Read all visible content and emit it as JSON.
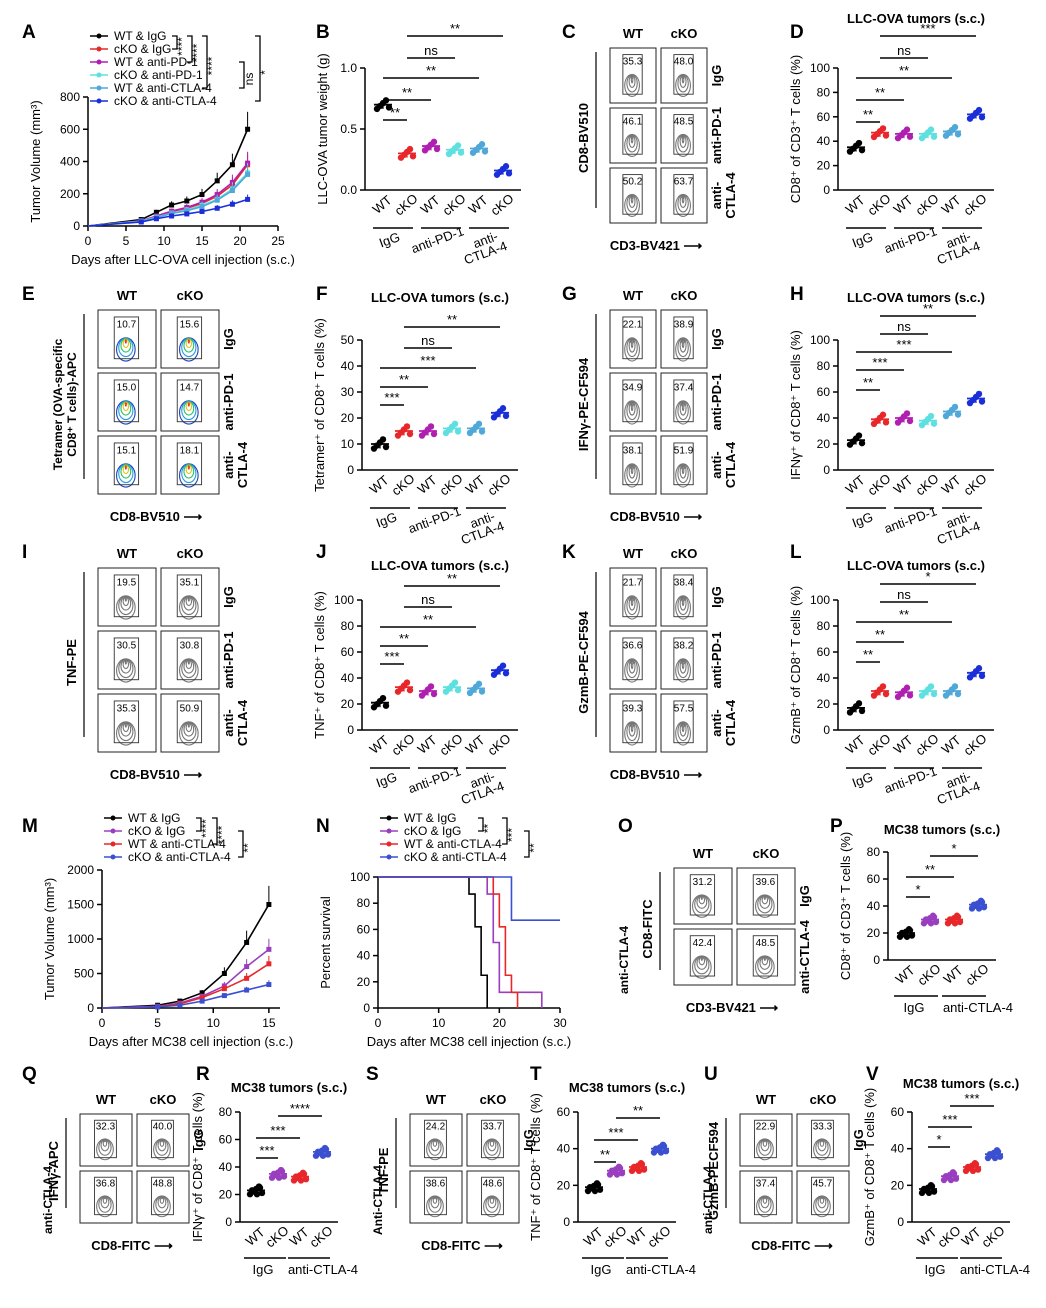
{
  "panel_letters": [
    "A",
    "B",
    "C",
    "D",
    "E",
    "F",
    "G",
    "H",
    "I",
    "J",
    "K",
    "L",
    "M",
    "N",
    "O",
    "P",
    "Q",
    "R",
    "S",
    "T",
    "U",
    "V"
  ],
  "colors": {
    "wt_igg": "#000000",
    "cko_igg": "#e8272a",
    "wt_pd1": "#b020b0",
    "cko_pd1": "#5fe0e0",
    "wt_ctla4": "#4fa8d8",
    "cko_ctla4": "#1a2fd8",
    "mc_cko_igg": "#9a3ec0",
    "mc_wt_ctla4": "#e8272a",
    "mc_cko_ctla4": "#3a50d0"
  },
  "common": {
    "wt": "WT",
    "cko": "cKO",
    "igg": "IgG",
    "anti_pd1": "anti-PD-1",
    "anti_ctla4_l1": "anti-",
    "anti_ctla4_l2": "CTLA-4",
    "anti_ctla4": "anti-CTLA-4",
    "Anti_ctla4": "Anti-CTLA-4",
    "sig2": "**",
    "sig3": "***",
    "sig4": "****",
    "sig1": "*",
    "ns": "ns"
  },
  "panels": {
    "A": {
      "chart_data": {
        "type": "line",
        "ylabel": "Tumor Volume (mm³)",
        "xlabel": "Days after LLC-OVA cell injection (s.c.)",
        "xlim": [
          0,
          25
        ],
        "ylim": [
          0,
          800
        ],
        "xticks": [
          "0",
          "5",
          "10",
          "15",
          "20",
          "25"
        ],
        "yticks": [
          "0",
          "200",
          "400",
          "600",
          "800"
        ],
        "x": [
          7,
          9,
          11,
          13,
          15,
          17,
          19,
          21
        ],
        "series": [
          {
            "name": "WT & IgG",
            "values": [
              40,
              85,
              130,
              155,
              195,
              280,
              380,
              600
            ]
          },
          {
            "name": "cKO & IgG",
            "values": [
              30,
              60,
              90,
              110,
              140,
              185,
              255,
              380
            ]
          },
          {
            "name": "WT & anti-PD-1",
            "values": [
              32,
              62,
              92,
              115,
              148,
              195,
              270,
              390
            ]
          },
          {
            "name": "cKO & anti-PD-1",
            "values": [
              30,
              55,
              80,
              100,
              128,
              165,
              230,
              330
            ]
          },
          {
            "name": "WT & anti-CTLA-4",
            "values": [
              28,
              52,
              78,
              95,
              120,
              160,
              220,
              320
            ]
          },
          {
            "name": "cKO & anti-CTLA-4",
            "values": [
              25,
              45,
              62,
              75,
              90,
              110,
              135,
              165
            ]
          }
        ],
        "stats": [
          "****",
          "****",
          "****",
          "ns",
          "*"
        ]
      }
    },
    "B": {
      "chart_data": {
        "type": "scatter",
        "ylabel": "LLC-OVA tumor weight (g)",
        "ylim": [
          0,
          1.0
        ],
        "yticks": [
          "0.0",
          "0.5",
          "1.0"
        ],
        "categories": [
          "WT",
          "cKO",
          "WT",
          "cKO",
          "WT",
          "cKO"
        ],
        "groups": [
          "IgG",
          "anti-PD-1",
          "anti-CTLA-4"
        ],
        "means": [
          0.7,
          0.3,
          0.36,
          0.33,
          0.34,
          0.16
        ],
        "stats": [
          "**",
          "**",
          "**",
          "ns",
          "**"
        ]
      }
    },
    "C": {
      "xlabel": "CD3-BV421",
      "ylabel": "CD8-BV510",
      "values": [
        "35.3",
        "48.0",
        "46.1",
        "48.5",
        "50.2",
        "63.7"
      ]
    },
    "D": {
      "chart_data": {
        "type": "scatter",
        "title": "LLC-OVA tumors (s.c.)",
        "ylabel": "CD8⁺ of CD3⁺ T cells (%)",
        "ylim": [
          0,
          100
        ],
        "yticks": [
          "0",
          "20",
          "40",
          "60",
          "80",
          "100"
        ],
        "means": [
          35,
          47,
          46,
          46,
          48,
          62
        ],
        "stats": [
          "**",
          "**",
          "**",
          "ns",
          "***"
        ]
      }
    },
    "E": {
      "xlabel": "CD8-BV510",
      "ylabel_l1": "Tetramer (OVA-specific",
      "ylabel_l2": "CD8⁺ T cells)-APC",
      "values": [
        "10.7",
        "15.6",
        "15.0",
        "14.7",
        "15.1",
        "18.1"
      ]
    },
    "F": {
      "chart_data": {
        "type": "scatter",
        "title": "LLC-OVA tumors (s.c.)",
        "ylabel": "Tetramer⁺ of CD8⁺ T cells (%)",
        "ylim": [
          0,
          50
        ],
        "yticks": [
          "0",
          "10",
          "20",
          "30",
          "40",
          "50"
        ],
        "means": [
          10,
          15,
          15,
          16,
          16,
          22
        ],
        "stats": [
          "***",
          "**",
          "***",
          "ns",
          "**"
        ]
      }
    },
    "G": {
      "xlabel": "CD8-BV510",
      "ylabel": "IFNγ-PE-CF594",
      "values": [
        "22.1",
        "38.9",
        "34.9",
        "37.4",
        "38.1",
        "51.9"
      ]
    },
    "H": {
      "chart_data": {
        "type": "scatter",
        "title": "LLC-OVA tumors (s.c.)",
        "ylabel": "IFNγ⁺ of CD8⁺ T cells (%)",
        "ylim": [
          0,
          100
        ],
        "yticks": [
          "0",
          "20",
          "40",
          "60",
          "80",
          "100"
        ],
        "means": [
          23,
          39,
          40,
          38,
          45,
          55
        ],
        "stats": [
          "**",
          "***",
          "***",
          "ns",
          "**"
        ]
      }
    },
    "I": {
      "xlabel": "CD8-BV510",
      "ylabel": "TNF-PE",
      "values": [
        "19.5",
        "35.1",
        "30.5",
        "30.8",
        "35.3",
        "50.9"
      ]
    },
    "J": {
      "chart_data": {
        "type": "scatter",
        "title": "LLC-OVA tumors (s.c.)",
        "ylabel": "TNF⁺ of CD8⁺ T cells (%)",
        "ylim": [
          0,
          100
        ],
        "yticks": [
          "0",
          "20",
          "40",
          "60",
          "80",
          "100"
        ],
        "means": [
          21,
          33,
          30,
          33,
          32,
          46
        ],
        "stats": [
          "***",
          "**",
          "**",
          "ns",
          "**"
        ]
      }
    },
    "K": {
      "xlabel": "CD8-BV510",
      "ylabel": "GzmB-PE-CF594",
      "values": [
        "21.7",
        "38.4",
        "36.6",
        "38.2",
        "39.3",
        "57.5"
      ]
    },
    "L": {
      "chart_data": {
        "type": "scatter",
        "title": "LLC-OVA tumors (s.c.)",
        "ylabel": "GzmB⁺ of CD8⁺ T cells (%)",
        "ylim": [
          0,
          100
        ],
        "yticks": [
          "0",
          "20",
          "40",
          "60",
          "80",
          "100"
        ],
        "means": [
          17,
          30,
          29,
          30,
          30,
          44
        ],
        "stats": [
          "**",
          "**",
          "**",
          "ns",
          "*"
        ]
      }
    },
    "M": {
      "chart_data": {
        "type": "line",
        "ylabel": "Tumor Volume (mm³)",
        "xlabel": "Days after MC38 cell injection (s.c.)",
        "xlim": [
          0,
          16
        ],
        "ylim": [
          0,
          2000
        ],
        "xticks": [
          "0",
          "5",
          "10",
          "15"
        ],
        "yticks": [
          "0",
          "500",
          "1000",
          "1500",
          "2000"
        ],
        "x": [
          5,
          7,
          9,
          11,
          13,
          15
        ],
        "series": [
          {
            "name": "WT & IgG",
            "values": [
              40,
              100,
              220,
              500,
              950,
              1500
            ]
          },
          {
            "name": "cKO & IgG",
            "values": [
              25,
              70,
              170,
              320,
              600,
              850
            ]
          },
          {
            "name": "WT & anti-CTLA-4",
            "values": [
              20,
              60,
              150,
              280,
              430,
              640
            ]
          },
          {
            "name": "cKO & anti-CTLA-4",
            "values": [
              15,
              40,
              100,
              180,
              260,
              340
            ]
          }
        ],
        "stats": [
          "****",
          "****",
          "**"
        ]
      }
    },
    "N": {
      "chart_data": {
        "type": "line",
        "ylabel": "Percent survival",
        "xlabel": "Days after MC38 cell injection (s.c.)",
        "xlim": [
          0,
          30
        ],
        "ylim": [
          0,
          100
        ],
        "xticks": [
          "0",
          "10",
          "20",
          "30"
        ],
        "yticks": [
          "0",
          "20",
          "40",
          "60",
          "80",
          "100"
        ],
        "series": [
          {
            "name": "WT & IgG",
            "steps": [
              [
                0,
                100
              ],
              [
                15,
                100
              ],
              [
                15,
                87
              ],
              [
                16,
                87
              ],
              [
                16,
                62
              ],
              [
                17,
                62
              ],
              [
                17,
                25
              ],
              [
                18,
                25
              ],
              [
                18,
                0
              ]
            ]
          },
          {
            "name": "cKO & IgG",
            "steps": [
              [
                0,
                100
              ],
              [
                18,
                100
              ],
              [
                18,
                87
              ],
              [
                19,
                87
              ],
              [
                19,
                50
              ],
              [
                20,
                50
              ],
              [
                20,
                12
              ],
              [
                27,
                12
              ],
              [
                27,
                0
              ]
            ]
          },
          {
            "name": "WT & anti-CTLA-4",
            "steps": [
              [
                0,
                100
              ],
              [
                19,
                100
              ],
              [
                19,
                87
              ],
              [
                20,
                87
              ],
              [
                20,
                62
              ],
              [
                21,
                62
              ],
              [
                21,
                25
              ],
              [
                22,
                25
              ],
              [
                22,
                12
              ],
              [
                23,
                12
              ],
              [
                23,
                0
              ]
            ]
          },
          {
            "name": "cKO & anti-CTLA-4",
            "steps": [
              [
                0,
                100
              ],
              [
                22,
                100
              ],
              [
                22,
                67
              ],
              [
                30,
                67
              ]
            ]
          }
        ],
        "stats": [
          "**",
          "***",
          "**"
        ]
      }
    },
    "O": {
      "xlabel": "CD3-BV421",
      "ylabel": "CD8-FITC",
      "values": [
        "31.2",
        "39.6",
        "42.4",
        "48.5"
      ]
    },
    "P": {
      "chart_data": {
        "type": "scatter",
        "title": "MC38 tumors (s.c.)",
        "ylabel": "CD8⁺ of CD3⁺ T cells (%)",
        "ylim": [
          0,
          80
        ],
        "yticks": [
          "0",
          "20",
          "40",
          "60",
          "80"
        ],
        "means": [
          20,
          30,
          30,
          41
        ],
        "stats": [
          "*",
          "**",
          "*"
        ]
      }
    },
    "Q": {
      "xlabel": "CD8-FITC",
      "ylabel": "IFNγ-APC",
      "values": [
        "32.3",
        "40.0",
        "36.8",
        "48.8"
      ]
    },
    "R": {
      "chart_data": {
        "type": "scatter",
        "title": "MC38 tumors (s.c.)",
        "ylabel": "IFNγ⁺ of CD8⁺ T cells (%)",
        "ylim": [
          0,
          80
        ],
        "yticks": [
          "0",
          "20",
          "40",
          "60",
          "80"
        ],
        "means": [
          23,
          35,
          33,
          51
        ],
        "stats": [
          "***",
          "***",
          "****"
        ]
      }
    },
    "S": {
      "xlabel": "CD8-FITC",
      "ylabel": "TNF-PE",
      "values": [
        "24.2",
        "33.7",
        "38.6",
        "48.6"
      ]
    },
    "T": {
      "chart_data": {
        "type": "scatter",
        "title": "MC38 tumors (s.c.)",
        "ylabel": "TNF⁺ of CD8⁺ T cells (%)",
        "ylim": [
          0,
          60
        ],
        "yticks": [
          "0",
          "20",
          "40",
          "60"
        ],
        "means": [
          19,
          28,
          30,
          40
        ],
        "stats": [
          "**",
          "***",
          "**"
        ]
      }
    },
    "U": {
      "xlabel": "CD8-FITC",
      "ylabel": "GzmB-PECF594",
      "values": [
        "22.9",
        "33.3",
        "37.4",
        "45.7"
      ]
    },
    "V": {
      "chart_data": {
        "type": "scatter",
        "title": "MC38 tumors (s.c.)",
        "ylabel": "GzmB⁺ of CD8⁺ T cells (%)",
        "ylim": [
          0,
          60
        ],
        "yticks": [
          "0",
          "20",
          "40",
          "60"
        ],
        "means": [
          18,
          25,
          30,
          37
        ],
        "stats": [
          "*",
          "***",
          "***"
        ]
      }
    }
  }
}
